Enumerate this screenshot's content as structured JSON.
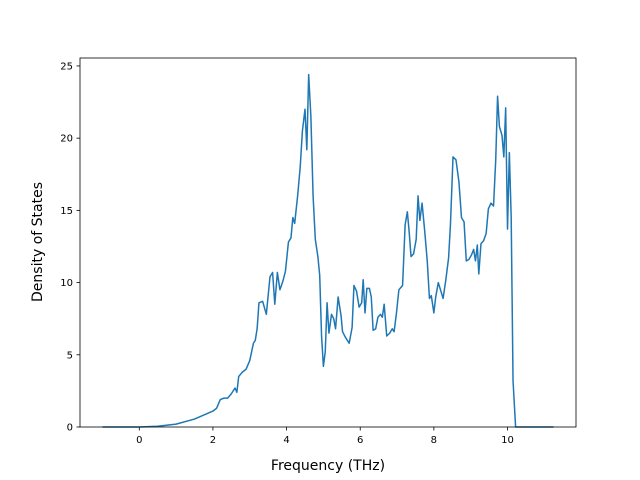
{
  "chart_data": {
    "type": "line",
    "x_label": "Frequency (THz)",
    "y_label": "Density of States",
    "xlim": [
      -1.61,
      11.86
    ],
    "ylim": [
      0,
      25.55
    ],
    "xticks": [
      0,
      2,
      4,
      6,
      8,
      10
    ],
    "yticks": [
      0,
      5,
      10,
      15,
      20,
      25
    ],
    "grid": false,
    "series": [
      {
        "color": "#1f77b4",
        "x": [
          -1,
          -0.5,
          0,
          0.5,
          1,
          1.5,
          2,
          2.1,
          2.2,
          2.3,
          2.4,
          2.5,
          2.6,
          2.65,
          2.7,
          2.8,
          2.9,
          3,
          3.1,
          3.15,
          3.2,
          3.25,
          3.35,
          3.45,
          3.55,
          3.62,
          3.68,
          3.75,
          3.82,
          3.9,
          3.97,
          4.05,
          4.12,
          4.17,
          4.22,
          4.3,
          4.37,
          4.43,
          4.5,
          4.55,
          4.6,
          4.66,
          4.72,
          4.78,
          4.85,
          4.9,
          4.95,
          5,
          5.05,
          5.1,
          5.15,
          5.22,
          5.28,
          5.33,
          5.4,
          5.48,
          5.52,
          5.6,
          5.7,
          5.78,
          5.83,
          5.9,
          5.97,
          6.04,
          6.08,
          6.13,
          6.18,
          6.25,
          6.3,
          6.35,
          6.42,
          6.48,
          6.55,
          6.6,
          6.65,
          6.72,
          6.8,
          6.87,
          6.92,
          6.98,
          7.05,
          7.15,
          7.22,
          7.28,
          7.33,
          7.38,
          7.45,
          7.52,
          7.57,
          7.62,
          7.68,
          7.75,
          7.82,
          7.88,
          7.93,
          8,
          8.05,
          8.12,
          8.18,
          8.25,
          8.32,
          8.4,
          8.45,
          8.52,
          8.6,
          8.68,
          8.75,
          8.82,
          8.88,
          8.95,
          9.02,
          9.08,
          9.13,
          9.18,
          9.22,
          9.28,
          9.35,
          9.42,
          9.48,
          9.55,
          9.62,
          9.68,
          9.73,
          9.78,
          9.85,
          9.9,
          9.95,
          10,
          10.05,
          10.1,
          10.15,
          10.22,
          11.25
        ],
        "values": [
          0,
          0,
          0,
          0.05,
          0.2,
          0.55,
          1.1,
          1.3,
          1.9,
          2,
          2,
          2.3,
          2.7,
          2.4,
          3.5,
          3.8,
          4,
          4.6,
          5.8,
          6,
          6.8,
          8.6,
          8.7,
          7.8,
          10.4,
          10.7,
          8.5,
          10.7,
          9.5,
          10.1,
          10.8,
          12.8,
          13.1,
          14.5,
          14.1,
          16,
          18,
          20.5,
          22,
          19.2,
          24.4,
          21.5,
          16,
          13,
          11.8,
          10.5,
          6.3,
          4.2,
          5.2,
          8.6,
          6.5,
          7.8,
          7.5,
          6.8,
          9,
          7.7,
          6.6,
          6.2,
          5.8,
          6.9,
          9.8,
          9.4,
          8.3,
          8.6,
          10.2,
          7.9,
          9.6,
          9.6,
          9,
          6.7,
          6.8,
          7.6,
          7.8,
          7.6,
          8.5,
          6.3,
          6.5,
          6.8,
          6.6,
          7.8,
          9.5,
          9.8,
          14,
          14.9,
          13.5,
          11.8,
          12,
          13,
          16,
          14.3,
          15.5,
          13.6,
          11.5,
          8.9,
          9.1,
          7.9,
          9,
          10,
          9.5,
          8.9,
          10.1,
          11.7,
          14,
          18.7,
          18.5,
          17,
          14.5,
          14.2,
          11.5,
          11.6,
          11.9,
          12.3,
          11.5,
          12.6,
          10.6,
          12.7,
          12.9,
          13.4,
          15.1,
          15.5,
          15.3,
          18.5,
          22.9,
          20.8,
          20.2,
          18.7,
          22.1,
          13.7,
          19,
          14.5,
          3.2,
          0,
          0
        ]
      }
    ]
  }
}
